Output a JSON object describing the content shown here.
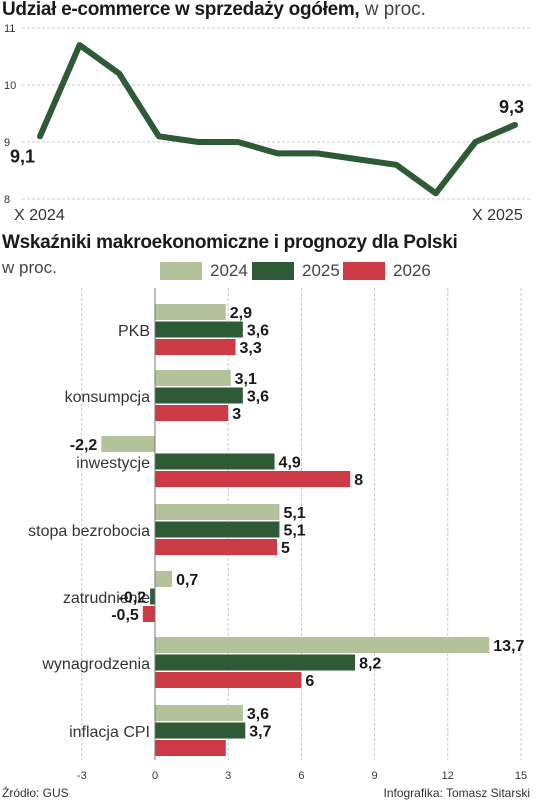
{
  "chart1": {
    "title_bold": "Udział e-commerce w sprzedaży ogółem,",
    "title_unit": "w proc."
  },
  "chart2": {
    "title": "Wskaźniki makroekonomiczne i prognozy dla Polski",
    "unit": "w proc."
  },
  "colors": {
    "line": "#2e5a36",
    "c2024": "#b3c29a",
    "c2025": "#2e5a36",
    "c2026": "#cc3a45",
    "grid": "#bcbcbc"
  },
  "footer": {
    "source": "Źródło: GUS",
    "credit": "Infografika: Tomasz Sitarski"
  },
  "chart_data": [
    {
      "type": "line",
      "title": "Udział e-commerce w sprzedaży ogółem, w proc.",
      "x_labels": [
        "X 2024",
        "X 2025"
      ],
      "y_ticks": [
        "8",
        "9",
        "10",
        "11"
      ],
      "ylim": [
        8,
        11
      ],
      "grid": true,
      "values": [
        9.1,
        10.7,
        10.2,
        9.1,
        9.0,
        9.0,
        8.8,
        8.8,
        8.7,
        8.6,
        8.1,
        9.0,
        9.3
      ],
      "point_labels": [
        {
          "index": 0,
          "text": "9,1"
        },
        {
          "index": 12,
          "text": "9,3"
        }
      ]
    },
    {
      "type": "bar",
      "orientation": "horizontal",
      "title": "Wskaźniki makroekonomiczne i prognozy dla Polski",
      "unit": "w proc.",
      "categories": [
        "PKB",
        "konsumpcja",
        "inwestycje",
        "stopa bezrobocia",
        "zatrudnienie",
        "wynagrodzenia",
        "inflacja CPI"
      ],
      "series": [
        {
          "name": "2024",
          "values": [
            2.9,
            3.1,
            -2.2,
            5.1,
            0.7,
            13.7,
            3.6
          ],
          "labels": [
            "2,9",
            "3,1",
            "-2,2",
            "5,1",
            "0,7",
            "13,7",
            "3,6"
          ]
        },
        {
          "name": "2025",
          "values": [
            3.6,
            3.6,
            null,
            5.1,
            -0.2,
            8.2,
            3.7
          ],
          "labels": [
            "3,6",
            "3,6",
            "",
            "5,1",
            "-0,2",
            "8,2",
            "3,7"
          ]
        },
        {
          "name": "2026",
          "values": [
            3.3,
            3.0,
            8.0,
            5.0,
            -0.5,
            6.0,
            2.9
          ],
          "labels": [
            "3,3",
            "3",
            "8",
            "5",
            "-0,5",
            "6",
            ""
          ]
        }
      ],
      "inline_values_2025": [
        null,
        null,
        4.9,
        null,
        null,
        null,
        null
      ],
      "inline_labels_2025": [
        "",
        "",
        "4,9",
        "",
        "",
        "",
        ""
      ],
      "xlim": [
        -3,
        15
      ],
      "x_ticks": [
        "-3",
        "0",
        "3",
        "6",
        "9",
        "12",
        "15"
      ],
      "grid": true
    }
  ]
}
